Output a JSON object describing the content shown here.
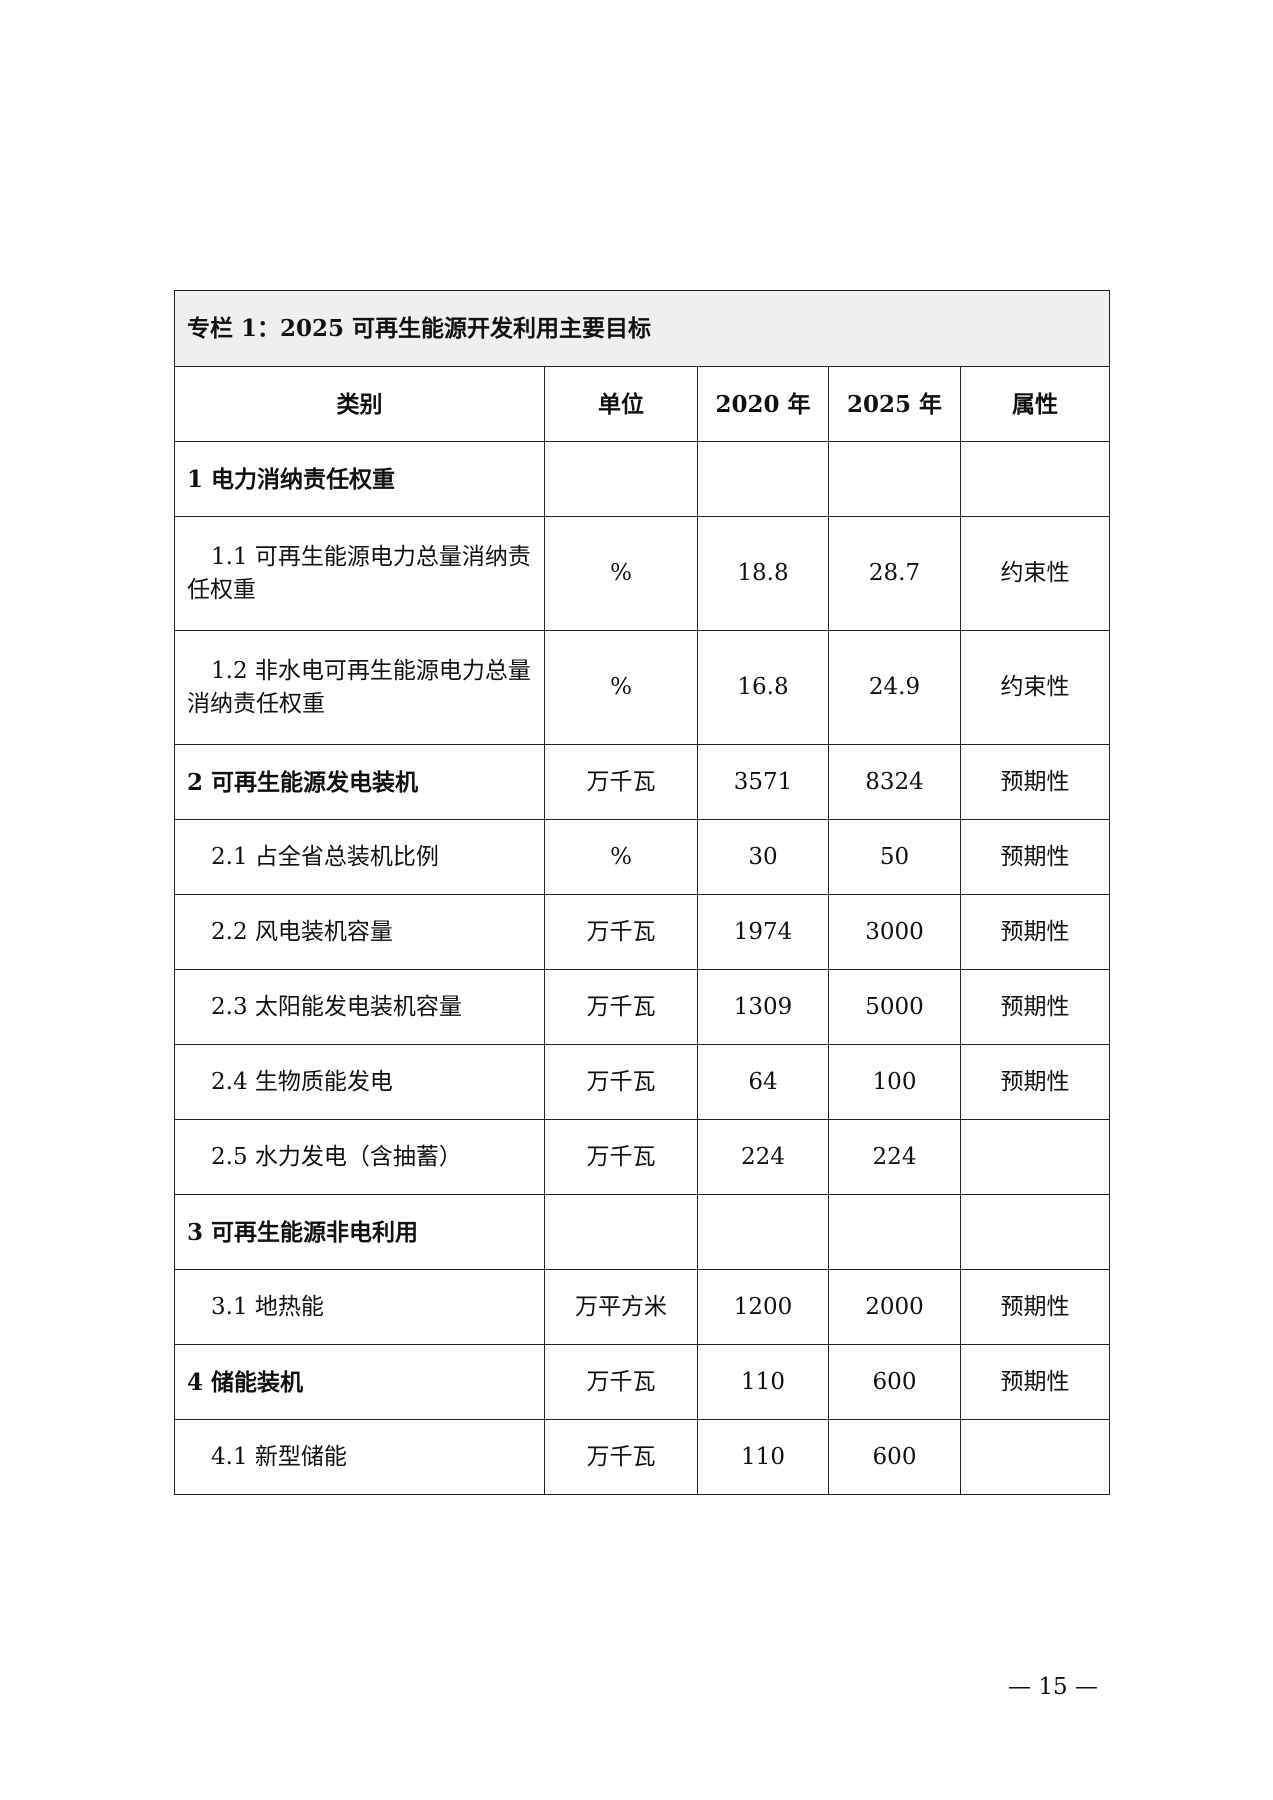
{
  "table": {
    "title": "专栏 1：2025 可再生能源开发利用主要目标",
    "headers": [
      "类别",
      "单位",
      "2020 年",
      "2025 年",
      "属性"
    ],
    "rows": [
      {
        "category": "1 电力消纳责任权重",
        "unit": "",
        "y2020": "",
        "y2025": "",
        "attr": "",
        "bold": true
      },
      {
        "category": "1.1 可再生能源电力总量消纳责任权重",
        "unit": "%",
        "y2020": "18.8",
        "y2025": "28.7",
        "attr": "约束性"
      },
      {
        "category": "1.2 非水电可再生能源电力总量消纳责任权重",
        "unit": "%",
        "y2020": "16.8",
        "y2025": "24.9",
        "attr": "约束性"
      },
      {
        "category": "2 可再生能源发电装机",
        "unit": "万千瓦",
        "y2020": "3571",
        "y2025": "8324",
        "attr": "预期性",
        "bold": true
      },
      {
        "category": "2.1 占全省总装机比例",
        "unit": "%",
        "y2020": "30",
        "y2025": "50",
        "attr": "预期性"
      },
      {
        "category": "2.2 风电装机容量",
        "unit": "万千瓦",
        "y2020": "1974",
        "y2025": "3000",
        "attr": "预期性"
      },
      {
        "category": "2.3 太阳能发电装机容量",
        "unit": "万千瓦",
        "y2020": "1309",
        "y2025": "5000",
        "attr": "预期性"
      },
      {
        "category": "2.4 生物质能发电",
        "unit": "万千瓦",
        "y2020": "64",
        "y2025": "100",
        "attr": "预期性"
      },
      {
        "category": "2.5 水力发电（含抽蓄）",
        "unit": "万千瓦",
        "y2020": "224",
        "y2025": "224",
        "attr": ""
      },
      {
        "category": "3 可再生能源非电利用",
        "unit": "",
        "y2020": "",
        "y2025": "",
        "attr": "",
        "bold": true
      },
      {
        "category": "3.1 地热能",
        "unit": "万平方米",
        "y2020": "1200",
        "y2025": "2000",
        "attr": "预期性"
      },
      {
        "category": "4 储能装机",
        "unit": "万千瓦",
        "y2020": "110",
        "y2025": "600",
        "attr": "预期性",
        "bold": true
      },
      {
        "category": "4.1 新型储能",
        "unit": "万千瓦",
        "y2020": "110",
        "y2025": "600",
        "attr": ""
      }
    ]
  },
  "page_number": "— 15 —"
}
